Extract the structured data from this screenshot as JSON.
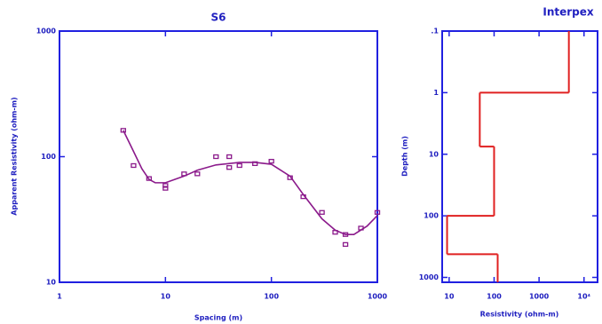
{
  "chart_data": [
    {
      "type": "line",
      "title": "S6",
      "xlabel": "Spacing (m)",
      "ylabel": "Apparent Resistivity (ohm-m)",
      "xlog": true,
      "ylog": true,
      "xlim": [
        1,
        1000
      ],
      "ylim": [
        10,
        1000
      ],
      "xticks": [
        1,
        10,
        100,
        1000
      ],
      "yticks": [
        10,
        100,
        1000
      ],
      "series": [
        {
          "mode": "markers",
          "color": "#8b1a8b",
          "x": [
            4,
            5,
            7,
            10,
            10,
            15,
            20,
            30,
            40,
            40,
            50,
            70,
            100,
            150,
            200,
            300,
            400,
            500,
            500,
            700,
            1000
          ],
          "values": [
            162,
            85,
            67,
            59,
            56,
            73,
            73,
            100,
            100,
            82,
            85,
            88,
            92,
            68,
            48,
            36,
            25,
            24,
            20,
            27,
            36
          ]
        },
        {
          "mode": "line",
          "color": "#8b1a8b",
          "x": [
            4,
            5,
            6,
            7,
            8,
            10,
            15,
            20,
            30,
            50,
            70,
            100,
            150,
            200,
            300,
            400,
            500,
            600,
            800,
            1000
          ],
          "values": [
            162,
            110,
            80,
            66,
            62,
            62,
            70,
            78,
            86,
            90,
            90,
            87,
            70,
            50,
            32,
            26,
            24,
            24,
            28,
            34
          ]
        }
      ]
    },
    {
      "type": "step",
      "title": "Interpex",
      "xlabel": "Resistivity (ohm-m)",
      "ylabel": "Depth (m)",
      "xlog": true,
      "ylog": true,
      "yinvert": true,
      "xlim": [
        7,
        20000
      ],
      "ylim": [
        0.1,
        1200
      ],
      "xticks": [
        10,
        100,
        1000,
        {
          "value": 10000,
          "label": "10⁴"
        }
      ],
      "yticks": [
        {
          "value": 0.1,
          "label": ".1"
        },
        1,
        10,
        100,
        1000
      ],
      "color": "#e02020",
      "resistivity": [
        4600,
        48,
        100,
        9,
        120
      ],
      "depths": [
        1,
        7.5,
        100,
        420
      ]
    }
  ]
}
